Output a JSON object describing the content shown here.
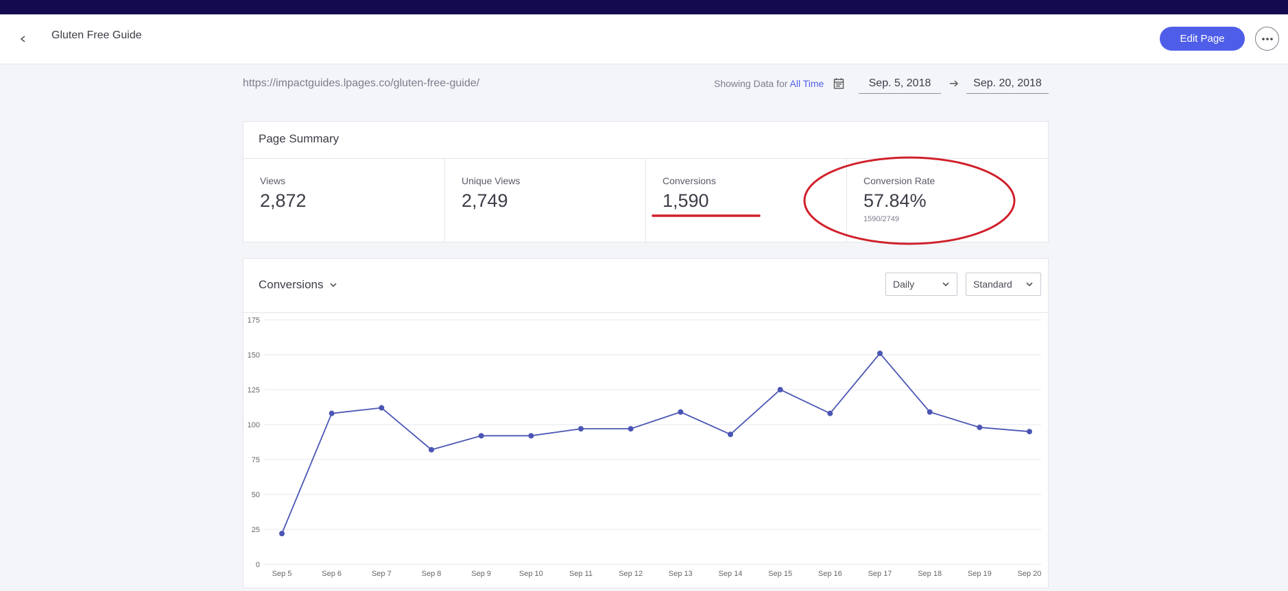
{
  "header": {
    "page_name": "Gluten Free Guide",
    "edit_label": "Edit Page"
  },
  "toolbar": {
    "url": "https://impactguides.lpages.co/gluten-free-guide/",
    "showing_prefix": "Showing Data for ",
    "showing_range": "All Time",
    "date_start": "Sep. 5, 2018",
    "date_end": "Sep. 20, 2018"
  },
  "summary": {
    "title": "Page Summary",
    "stats": [
      {
        "label": "Views",
        "value": "2,872"
      },
      {
        "label": "Unique Views",
        "value": "2,749"
      },
      {
        "label": "Conversions",
        "value": "1,590"
      },
      {
        "label": "Conversion Rate",
        "value": "57.84%",
        "sub": "1590/2749"
      }
    ]
  },
  "chart_section": {
    "title": "Conversions",
    "interval": "Daily",
    "mode": "Standard"
  },
  "colors": {
    "brand": "#4f5ee8",
    "topbar": "#140a50",
    "line": "#4a55b4",
    "annotation": "#d0202a"
  },
  "chart_data": {
    "type": "line",
    "categories": [
      "Sep 5",
      "Sep 6",
      "Sep 7",
      "Sep 8",
      "Sep 9",
      "Sep 10",
      "Sep 11",
      "Sep 12",
      "Sep 13",
      "Sep 14",
      "Sep 15",
      "Sep 16",
      "Sep 17",
      "Sep 18",
      "Sep 19",
      "Sep 20"
    ],
    "series": [
      {
        "values": [
          22,
          108,
          112,
          82,
          92,
          92,
          97,
          97,
          109,
          93,
          125,
          108,
          151,
          109,
          98,
          95
        ]
      }
    ],
    "ylim": [
      0,
      175
    ],
    "yticks": [
      0,
      25,
      50,
      75,
      100,
      125,
      150,
      175
    ],
    "grid": true
  }
}
